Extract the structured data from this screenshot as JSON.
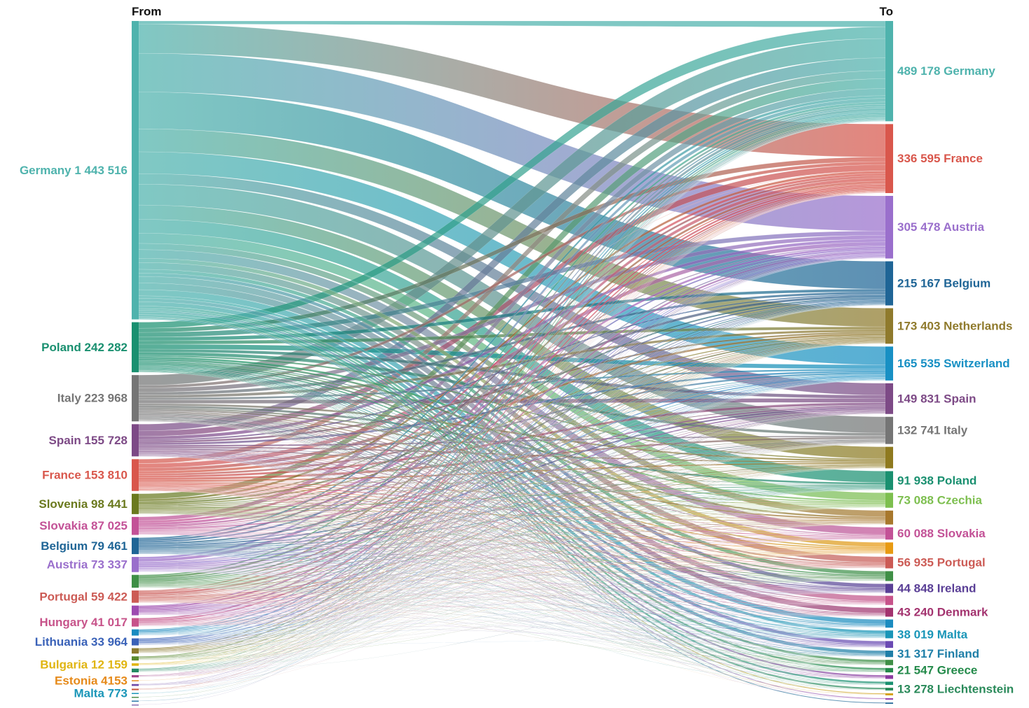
{
  "chart_data": {
    "type": "sankey",
    "title": "",
    "header_from": "From",
    "header_to": "To",
    "sources": [
      {
        "name": "Germany",
        "value": 1443516,
        "label": "Germany 1 443 516",
        "color": "#4fb3ad"
      },
      {
        "name": "Poland",
        "value": 242282,
        "label": "Poland 242 282",
        "color": "#1a9070"
      },
      {
        "name": "Italy",
        "value": 223968,
        "label": "Italy 223 968",
        "color": "#757575"
      },
      {
        "name": "Spain",
        "value": 155728,
        "label": "Spain 155 728",
        "color": "#7d4a86"
      },
      {
        "name": "France",
        "value": 153810,
        "label": "France 153 810",
        "color": "#d9574c"
      },
      {
        "name": "Slovenia",
        "value": 98441,
        "label": "Slovenia 98 441",
        "color": "#6b7a1f"
      },
      {
        "name": "Slovakia",
        "value": 87025,
        "label": "Slovakia 87 025",
        "color": "#c35297"
      },
      {
        "name": "Belgium",
        "value": 79461,
        "label": "Belgium 79 461",
        "color": "#1f6596"
      },
      {
        "name": "Austria",
        "value": 73337,
        "label": "Austria 73 337",
        "color": "#9a6fcc"
      },
      {
        "name": "",
        "value": 62000,
        "label": "",
        "color": "#3f8f46"
      },
      {
        "name": "Portugal",
        "value": 59422,
        "label": "Portugal 59 422",
        "color": "#cc5b55"
      },
      {
        "name": "",
        "value": 47000,
        "label": "",
        "color": "#9d4bb0"
      },
      {
        "name": "Hungary",
        "value": 41017,
        "label": "Hungary 41 017",
        "color": "#c7538a"
      },
      {
        "name": "",
        "value": 30000,
        "label": "",
        "color": "#1b8cc0"
      },
      {
        "name": "Lithuania",
        "value": 33964,
        "label": "Lithuania 33 964",
        "color": "#3a62b8"
      },
      {
        "name": "",
        "value": 26000,
        "label": "",
        "color": "#8c7b2e"
      },
      {
        "name": "",
        "value": 20000,
        "label": "",
        "color": "#5a8a2e"
      },
      {
        "name": "Bulgaria",
        "value": 12159,
        "label": "Bulgaria 12 159",
        "color": "#e0b512"
      },
      {
        "name": "",
        "value": 18000,
        "label": "",
        "color": "#238a63"
      },
      {
        "name": "",
        "value": 11000,
        "label": "",
        "color": "#a3468c"
      },
      {
        "name": "Estonia",
        "value": 4153,
        "label": "Estonia 4153",
        "color": "#e68a1a"
      },
      {
        "name": "",
        "value": 9000,
        "label": "",
        "color": "#6d4aa8"
      },
      {
        "name": "",
        "value": 7000,
        "label": "",
        "color": "#c7553f"
      },
      {
        "name": "Malta",
        "value": 773,
        "label": "Malta 773",
        "color": "#1a96b8"
      },
      {
        "name": "",
        "value": 5000,
        "label": "",
        "color": "#4f8f4a"
      },
      {
        "name": "",
        "value": 4000,
        "label": "",
        "color": "#2a78a8"
      },
      {
        "name": "",
        "value": 3000,
        "label": "",
        "color": "#8b6fb3"
      }
    ],
    "targets": [
      {
        "name": "Germany",
        "value": 489178,
        "label": "489 178 Germany",
        "color": "#4fb3ad"
      },
      {
        "name": "France",
        "value": 336595,
        "label": "336 595 France",
        "color": "#d9574c"
      },
      {
        "name": "Austria",
        "value": 305478,
        "label": "305 478 Austria",
        "color": "#9a6fcc"
      },
      {
        "name": "Belgium",
        "value": 215167,
        "label": "215 167 Belgium",
        "color": "#1f6596"
      },
      {
        "name": "Netherlands",
        "value": 173403,
        "label": "173 403 Netherlands",
        "color": "#8f7a2c"
      },
      {
        "name": "Switzerland",
        "value": 165535,
        "label": "165 535 Switzerland",
        "color": "#1890c4"
      },
      {
        "name": "Spain",
        "value": 149831,
        "label": "149 831 Spain",
        "color": "#7d4a86"
      },
      {
        "name": "Italy",
        "value": 132741,
        "label": "132 741 Italy",
        "color": "#757575"
      },
      {
        "name": "",
        "value": 105000,
        "label": "",
        "color": "#8f7a1f"
      },
      {
        "name": "Poland",
        "value": 91938,
        "label": "91 938 Poland",
        "color": "#1a9070"
      },
      {
        "name": "Czechia",
        "value": 73088,
        "label": "73 088 Czechia",
        "color": "#7dbf4f"
      },
      {
        "name": "",
        "value": 68000,
        "label": "",
        "color": "#a8782c"
      },
      {
        "name": "Slovakia",
        "value": 60088,
        "label": "60 088 Slovakia",
        "color": "#c35297"
      },
      {
        "name": "",
        "value": 56000,
        "label": "",
        "color": "#e89a12"
      },
      {
        "name": "Portugal",
        "value": 56935,
        "label": "56 935 Portugal",
        "color": "#cc5b55"
      },
      {
        "name": "",
        "value": 48000,
        "label": "",
        "color": "#3f8f46"
      },
      {
        "name": "Ireland",
        "value": 44848,
        "label": "44 848 Ireland",
        "color": "#5a3f96"
      },
      {
        "name": "",
        "value": 45000,
        "label": "",
        "color": "#c7538a"
      },
      {
        "name": "Denmark",
        "value": 43240,
        "label": "43 240 Denmark",
        "color": "#a3336f"
      },
      {
        "name": "",
        "value": 40000,
        "label": "",
        "color": "#1b8cc0"
      },
      {
        "name": "Malta",
        "value": 38019,
        "label": "38 019 Malta",
        "color": "#1a96b8"
      },
      {
        "name": "",
        "value": 33000,
        "label": "",
        "color": "#6b4ab3"
      },
      {
        "name": "Finland",
        "value": 31317,
        "label": "31 317 Finland",
        "color": "#1f7fa8"
      },
      {
        "name": "",
        "value": 26000,
        "label": "",
        "color": "#3f8f46"
      },
      {
        "name": "Greece",
        "value": 21547,
        "label": "21 547 Greece",
        "color": "#238a4a"
      },
      {
        "name": "",
        "value": 18000,
        "label": "",
        "color": "#8b3aa0"
      },
      {
        "name": "",
        "value": 16000,
        "label": "",
        "color": "#1a9070"
      },
      {
        "name": "Liechtenstein",
        "value": 13278,
        "label": "13 278 Liechtenstein",
        "color": "#2a8a5a"
      },
      {
        "name": "",
        "value": 10000,
        "label": "",
        "color": "#d4a017"
      },
      {
        "name": "",
        "value": 8000,
        "label": "",
        "color": "#9d4bb0"
      },
      {
        "name": "",
        "value": 6000,
        "label": "",
        "color": "#1f6596"
      }
    ]
  }
}
